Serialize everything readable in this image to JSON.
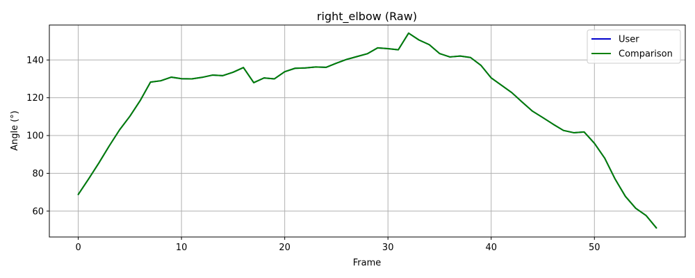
{
  "chart_data": {
    "type": "line",
    "title": "right_elbow (Raw)",
    "xlabel": "Frame",
    "ylabel": "Angle (°)",
    "xlim": [
      -2.8,
      58.8
    ],
    "ylim": [
      46.3,
      158.5
    ],
    "xticks": [
      0,
      10,
      20,
      30,
      40,
      50
    ],
    "yticks": [
      60,
      80,
      100,
      120,
      140
    ],
    "grid": true,
    "legend_position": "top-right",
    "series": [
      {
        "name": "User",
        "color": "#0000cc",
        "x": [
          0,
          1,
          2,
          3,
          4,
          5,
          6,
          7,
          8,
          9,
          10,
          11,
          12,
          13,
          14,
          15,
          16,
          17,
          18,
          19,
          20,
          21,
          22,
          23,
          24,
          25,
          26,
          27,
          28,
          29,
          30,
          31,
          32,
          33,
          34,
          35,
          36,
          37,
          38,
          39,
          40,
          41,
          42,
          43,
          44,
          45,
          46,
          47,
          48,
          49,
          50,
          51,
          52,
          53,
          54,
          55,
          56
        ],
        "y": [
          68.8,
          77,
          85.5,
          94.5,
          103,
          110.2,
          118.5,
          128.3,
          129,
          130.9,
          130.1,
          130,
          130.8,
          132,
          131.7,
          133.5,
          136,
          128,
          130.5,
          130,
          133.8,
          135.6,
          135.8,
          136.3,
          136.1,
          138.3,
          140.3,
          141.8,
          143.3,
          146.4,
          146,
          145.4,
          154.2,
          150.6,
          148.1,
          143.4,
          141.6,
          142.1,
          141.3,
          137.2,
          130.5,
          126.6,
          122.7,
          117.7,
          112.9,
          109.5,
          106,
          102.7,
          101.5,
          101.9,
          95.9,
          88,
          77,
          67.8,
          61.5,
          57.7,
          51.1
        ]
      },
      {
        "name": "Comparison",
        "color": "#008000",
        "x": [
          0,
          1,
          2,
          3,
          4,
          5,
          6,
          7,
          8,
          9,
          10,
          11,
          12,
          13,
          14,
          15,
          16,
          17,
          18,
          19,
          20,
          21,
          22,
          23,
          24,
          25,
          26,
          27,
          28,
          29,
          30,
          31,
          32,
          33,
          34,
          35,
          36,
          37,
          38,
          39,
          40,
          41,
          42,
          43,
          44,
          45,
          46,
          47,
          48,
          49,
          50,
          51,
          52,
          53,
          54,
          55,
          56
        ],
        "y": [
          68.8,
          77,
          85.5,
          94.5,
          103,
          110.2,
          118.5,
          128.3,
          129,
          130.9,
          130.1,
          130,
          130.8,
          132,
          131.7,
          133.5,
          136,
          128,
          130.5,
          130,
          133.8,
          135.6,
          135.8,
          136.3,
          136.1,
          138.3,
          140.3,
          141.8,
          143.3,
          146.4,
          146,
          145.4,
          154.2,
          150.6,
          148.1,
          143.4,
          141.6,
          142.1,
          141.3,
          137.2,
          130.5,
          126.6,
          122.7,
          117.7,
          112.9,
          109.5,
          106,
          102.7,
          101.5,
          101.9,
          95.9,
          88,
          77,
          67.8,
          61.5,
          57.7,
          51.1
        ]
      }
    ]
  }
}
